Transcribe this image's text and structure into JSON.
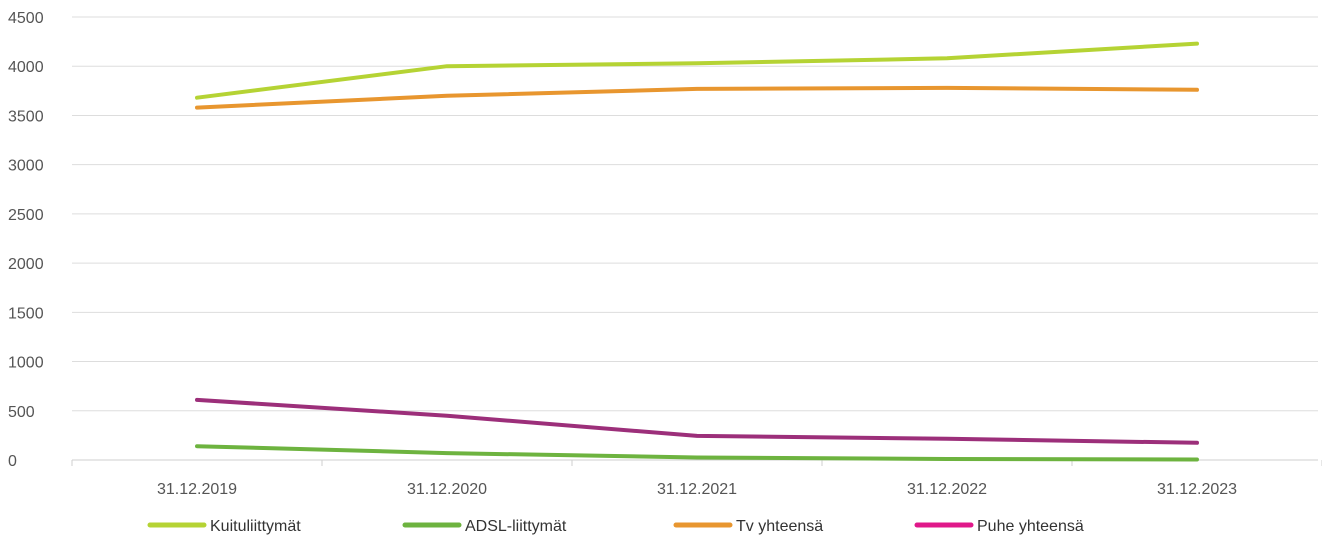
{
  "chart_data": {
    "type": "line",
    "categories": [
      "31.12.2019",
      "31.12.2020",
      "31.12.2021",
      "31.12.2022",
      "31.12.2023"
    ],
    "series": [
      {
        "name": "Kuituliittymät",
        "color": "#b5d334",
        "values": [
          3680,
          4000,
          4030,
          4080,
          4230
        ]
      },
      {
        "name": "ADSL-liittymät",
        "color": "#6db33f",
        "values": [
          140,
          70,
          25,
          10,
          5
        ]
      },
      {
        "name": "Tv yhteensä",
        "color": "#e8962f",
        "values": [
          3580,
          3700,
          3770,
          3780,
          3760
        ]
      },
      {
        "name": "Puhe yhteensä",
        "color": "#9c2f7a",
        "legend_color": "#e0188a",
        "values": [
          610,
          450,
          245,
          215,
          175
        ]
      }
    ],
    "ylim": [
      0,
      4500
    ],
    "yticks": [
      "0",
      "500",
      "1000",
      "1500",
      "2000",
      "2500",
      "3000",
      "3500",
      "4000",
      "4500"
    ],
    "grid": true,
    "legend_position": "bottom",
    "title": "",
    "xlabel": "",
    "ylabel": ""
  }
}
